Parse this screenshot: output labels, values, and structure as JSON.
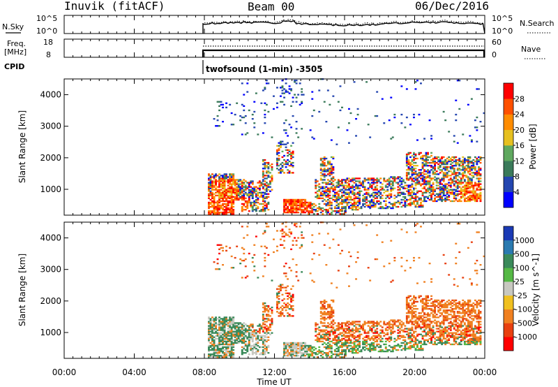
{
  "header": {
    "station": "Inuvik (fitACF)",
    "beam": "Beam 00",
    "date": "06/Dec/2016"
  },
  "sky_panel": {
    "left_label": "N.Sky",
    "left_ticks": [
      "10^5",
      "10^0"
    ],
    "right_ticks": [
      "10^5",
      "10^0"
    ],
    "right_label": "N.Search"
  },
  "freq_panel": {
    "left_label_1": "Freq.",
    "left_label_2": "[MHz]",
    "left_ticks": [
      "18",
      "8"
    ],
    "right_ticks": [
      "60",
      "0"
    ],
    "right_label": "Nave"
  },
  "cpid": {
    "label": "CPID",
    "program": "twofsound (1-min) -3505"
  },
  "chart_data": [
    {
      "type": "heatmap",
      "quantity": "Power",
      "ylabel": "Slant Range [km]",
      "yticks": [
        "1000",
        "2000",
        "3000",
        "4000"
      ],
      "ylim": [
        180,
        4500
      ],
      "colorbar_label": "Power [dB]",
      "colorbar_ticks": [
        "4",
        "8",
        "12",
        "16",
        "20",
        "24",
        "28"
      ],
      "colorbar_range": [
        0,
        32
      ],
      "colorbar_colors": [
        "#0000ff",
        "#2446b0",
        "#3a7a5a",
        "#5fa85f",
        "#e6c020",
        "#ff8c00",
        "#ff5000",
        "#ff0000"
      ],
      "data_start_ut": "08:00"
    },
    {
      "type": "heatmap",
      "quantity": "Velocity",
      "ylabel": "Slant Range [km]",
      "yticks": [
        "1000",
        "2000",
        "3000",
        "4000"
      ],
      "ylim": [
        180,
        4500
      ],
      "colorbar_label": "Velocity [m s^-1]",
      "colorbar_ticks": [
        "1000",
        "500",
        "100",
        "25",
        "-25",
        "-100",
        "-500",
        "-1000"
      ],
      "colorbar_colors": [
        "#1a3ab5",
        "#2a7ab0",
        "#3a8a5a",
        "#55b845",
        "#c8c8c0",
        "#f0c020",
        "#f08020",
        "#e84010",
        "#ff0000"
      ],
      "data_start_ut": "08:00"
    }
  ],
  "time_axis": {
    "label": "Time UT",
    "ticks": [
      "00:00",
      "04:00",
      "08:00",
      "12:00",
      "16:00",
      "20:00",
      "00:00"
    ]
  }
}
